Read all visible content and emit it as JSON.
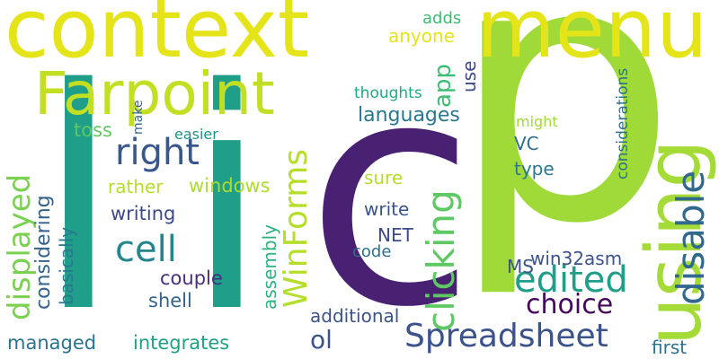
{
  "words": {
    "p": {
      "text": "p",
      "color": "#a0da39"
    },
    "l": {
      "text": "l",
      "color": "#1f9e89"
    },
    "c": {
      "text": "c",
      "color": "#482173"
    },
    "i": {
      "text": "i",
      "color": "#1f9e89"
    },
    "context": {
      "text": "context",
      "color": "#e4e419"
    },
    "menu": {
      "text": "menu",
      "color": "#e4e419"
    },
    "farpoint": {
      "text": "Farpoint",
      "color": "#c2df23"
    },
    "using": {
      "text": "using",
      "color": "#a5db36"
    },
    "right": {
      "text": "right",
      "color": "#38588c"
    },
    "cell": {
      "text": "cell",
      "color": "#25858e"
    },
    "winforms": {
      "text": "WinForms",
      "color": "#b5de2b"
    },
    "spreadsheet": {
      "text": "Spreadsheet",
      "color": "#3b528b"
    },
    "clicking": {
      "text": "clicking",
      "color": "#5ec962"
    },
    "edited": {
      "text": "edited",
      "color": "#1f9e89"
    },
    "disable": {
      "text": "disable",
      "color": "#31688e"
    },
    "displayed": {
      "text": "displayed",
      "color": "#7ad151"
    },
    "choice": {
      "text": "choice",
      "color": "#46085c"
    },
    "app": {
      "text": "app",
      "color": "#3dbc74"
    },
    "languages": {
      "text": "languages",
      "color": "#2a788e"
    },
    "ol": {
      "text": "ol",
      "color": "#3b528b"
    },
    "windows": {
      "text": "windows",
      "color": "#addc30"
    },
    "integrates": {
      "text": "integrates",
      "color": "#1fa187"
    },
    "managed": {
      "text": "managed",
      "color": "#2c728e"
    },
    "additional": {
      "text": "additional",
      "color": "#3b528b"
    },
    "couple": {
      "text": "couple",
      "color": "#472d7b"
    },
    "shell": {
      "text": "shell",
      "color": "#33638d"
    },
    "writing": {
      "text": "writing",
      "color": "#3e4989"
    },
    "rather": {
      "text": "rather",
      "color": "#b5de2b"
    },
    "considering": {
      "text": "considering",
      "color": "#33638d"
    },
    "basically": {
      "text": "basically",
      "color": "#2a788e"
    },
    "assembly": {
      "text": "assembly",
      "color": "#2db27d"
    },
    "win32asm": {
      "text": "win32asm",
      "color": "#3b528b"
    },
    "ms": {
      "text": "MS",
      "color": "#3b528b"
    },
    "net": {
      "text": "NET",
      "color": "#3e4989"
    },
    "code": {
      "text": "code",
      "color": "#2e6e8e"
    },
    "write": {
      "text": "write",
      "color": "#3b528b"
    },
    "sure": {
      "text": "sure",
      "color": "#b5de2b"
    },
    "type": {
      "text": "type",
      "color": "#2a788e"
    },
    "vc": {
      "text": "VC",
      "color": "#2e6e8e"
    },
    "might": {
      "text": "might",
      "color": "#a0da39"
    },
    "considerations": {
      "text": "considerations",
      "color": "#2c728e"
    },
    "first": {
      "text": "first",
      "color": "#2c728e"
    },
    "thoughts": {
      "text": "thoughts",
      "color": "#22a884"
    },
    "anyone": {
      "text": "anyone",
      "color": "#e4e419"
    },
    "adds": {
      "text": "adds",
      "color": "#3dbc74"
    },
    "use": {
      "text": "use",
      "color": "#3e4989"
    },
    "toss": {
      "text": "toss",
      "color": "#5ec962"
    },
    "easier": {
      "text": "easier",
      "color": "#21918c"
    },
    "make": {
      "text": "make",
      "color": "#31688e"
    }
  }
}
